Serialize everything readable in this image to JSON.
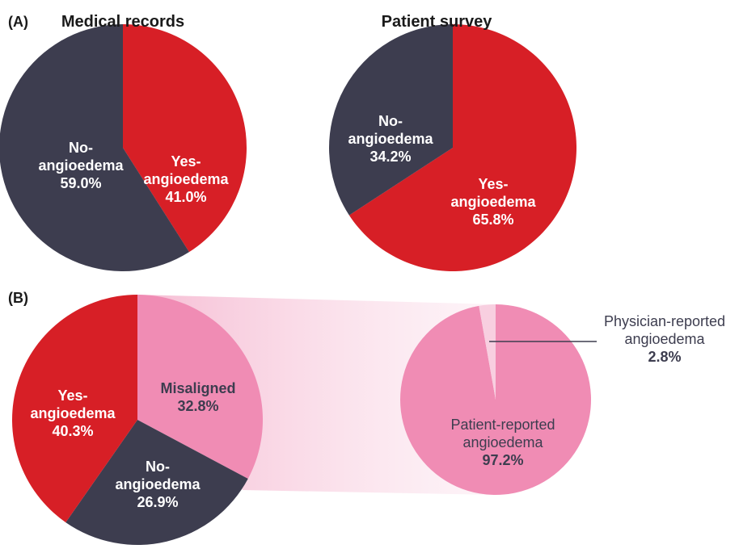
{
  "chart_data": [
    {
      "type": "pie",
      "panel": "(A)",
      "title": "Medical records",
      "categories": [
        "Yes-angioedema",
        "No-angioedema"
      ],
      "values": [
        41.0,
        59.0
      ],
      "value_labels": [
        "41.0%",
        "59.0%"
      ],
      "colors": [
        "#d71f26",
        "#3d3d4f"
      ]
    },
    {
      "type": "pie",
      "title": "Patient survey",
      "categories": [
        "Yes-angioedema",
        "No-angioedema"
      ],
      "values": [
        65.8,
        34.2
      ],
      "value_labels": [
        "65.8%",
        "34.2%"
      ],
      "colors": [
        "#d71f26",
        "#3d3d4f"
      ]
    },
    {
      "type": "pie",
      "panel": "(B)",
      "categories": [
        "Misaligned",
        "No-angioedema",
        "Yes-angioedema"
      ],
      "values": [
        32.8,
        26.9,
        40.3
      ],
      "value_labels": [
        "32.8%",
        "26.9%",
        "40.3%"
      ],
      "colors": [
        "#f08cb4",
        "#3d3d4f",
        "#d71f26"
      ]
    },
    {
      "type": "pie",
      "categories": [
        "Patient-reported angioedema",
        "Physician-reported angioedema"
      ],
      "values": [
        97.2,
        2.8
      ],
      "value_labels": [
        "97.2%",
        "2.8%"
      ],
      "colors": [
        "#f08cb4",
        "#f8cfe0"
      ]
    }
  ]
}
